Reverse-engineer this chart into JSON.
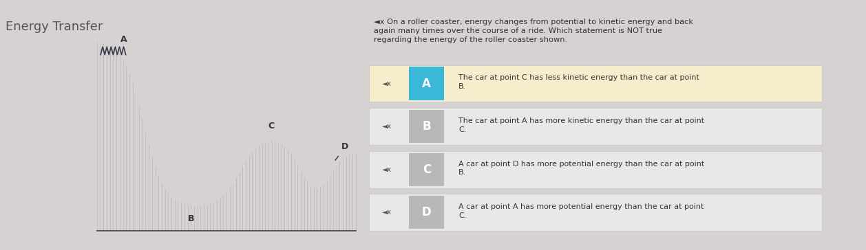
{
  "title": "Energy Transfer",
  "title_color": "#555555",
  "bg_color": "#d6d2d2",
  "header_bar_color": "#8b4d8b",
  "question_text": "◄x On a roller coaster, energy changes from potential to kinetic energy and back\nagain many times over the course of a ride. Which statement is NOT true\nregarding the energy of the roller coaster shown.",
  "answers": [
    {
      "letter": "A",
      "text": "The car at point C has less kinetic energy than the car at point\nB.",
      "highlighted": true
    },
    {
      "letter": "B",
      "text": "The car at point A has more kinetic energy than the car at point\nC.",
      "highlighted": false
    },
    {
      "letter": "C",
      "text": "A car at point D has more potential energy than the car at point\nB.",
      "highlighted": false
    },
    {
      "letter": "D",
      "text": "A car at point A has more potential energy than the car at point\nC.",
      "highlighted": false
    }
  ],
  "answer_bg_highlighted": "#f5edcc",
  "answer_bg_normal": "#e8e8e8",
  "answer_letter_highlighted_bg": "#3ab8d8",
  "answer_letter_normal_bg": "#b8b8b8",
  "answer_letter_color": "#ffffff",
  "right_panel_bg": "#e8e8e8",
  "right_sidebar_color": "#3ab8d8",
  "curve_color": "#3a3a4a",
  "hatch_color": "#bbbbbb",
  "ground_color": "#3a3a4a"
}
